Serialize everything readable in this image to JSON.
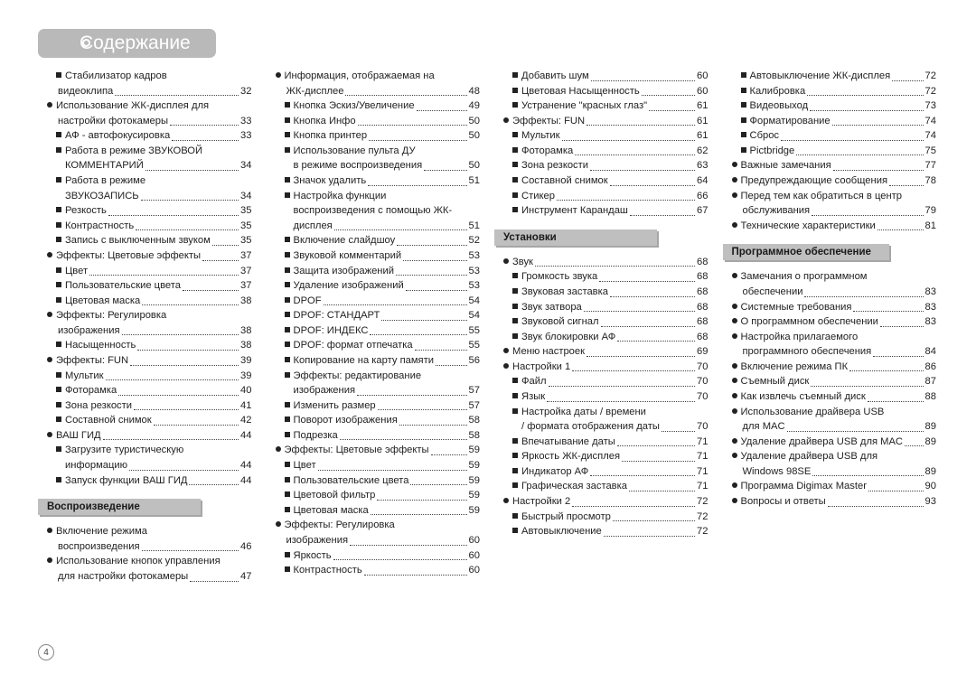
{
  "page_number": "4",
  "title": "Содержание",
  "colors": {
    "title_bar_bg": "#b9b9b9",
    "title_text": "#ffffff",
    "section_bar_bg": "#bfbfbf",
    "section_shadow": "rgba(0,0,0,0.35)",
    "body_text": "#222222",
    "page_bg": "#ffffff"
  },
  "typography": {
    "title_fontsize_pt": 16,
    "body_fontsize_pt": 8.5,
    "section_fontsize_pt": 9,
    "font_family": "Arial"
  },
  "sections": {
    "playback": "Воспроизведение",
    "settings": "Установки",
    "software": "Программное обеспечение"
  },
  "col1": [
    {
      "marker": "sq",
      "indent": 1,
      "text": "Стабилизатор кадров",
      "cont": true
    },
    {
      "marker": "",
      "indent": "hang1",
      "text": "видеоклипа",
      "page": "32"
    },
    {
      "marker": "bullet",
      "indent": 0,
      "text": "Использование ЖК-дисплея для",
      "cont": true
    },
    {
      "marker": "",
      "indent": "hang1",
      "text": "настройки фотокамеры",
      "page": "33"
    },
    {
      "marker": "sq",
      "indent": 1,
      "text": "АФ - автофокусировка",
      "page": "33"
    },
    {
      "marker": "sq",
      "indent": 1,
      "text": "Работа в режиме ЗВУКОВОЙ",
      "cont": true
    },
    {
      "marker": "",
      "indent": "hang2",
      "text": "КОММЕНТАРИЙ",
      "page": "34"
    },
    {
      "marker": "sq",
      "indent": 1,
      "text": "Работа в режиме",
      "cont": true
    },
    {
      "marker": "",
      "indent": "hang2",
      "text": "ЗВУКОЗАПИСЬ",
      "page": "34"
    },
    {
      "marker": "sq",
      "indent": 1,
      "text": "Резкость",
      "page": "35"
    },
    {
      "marker": "sq",
      "indent": 1,
      "text": "Контрастность",
      "page": "35"
    },
    {
      "marker": "sq",
      "indent": 1,
      "text": "Запись с выключенным звуком",
      "page": "35"
    },
    {
      "marker": "bullet",
      "indent": 0,
      "text": "Эффекты: Цветовые эффекты",
      "page": "37"
    },
    {
      "marker": "sq",
      "indent": 1,
      "text": "Цвет",
      "page": "37"
    },
    {
      "marker": "sq",
      "indent": 1,
      "text": "Пользовательские цвета",
      "page": "37"
    },
    {
      "marker": "sq",
      "indent": 1,
      "text": "Цветовая маска",
      "page": "38"
    },
    {
      "marker": "bullet",
      "indent": 0,
      "text": "Эффекты: Регулировка",
      "cont": true
    },
    {
      "marker": "",
      "indent": "hang1",
      "text": "изображения",
      "page": "38"
    },
    {
      "marker": "sq",
      "indent": 1,
      "text": "Насыщенность",
      "page": "38"
    },
    {
      "marker": "bullet",
      "indent": 0,
      "text": "Эффекты: FUN",
      "page": "39"
    },
    {
      "marker": "sq",
      "indent": 1,
      "text": "Мультик",
      "page": "39"
    },
    {
      "marker": "sq",
      "indent": 1,
      "text": "Фоторамка",
      "page": "40"
    },
    {
      "marker": "sq",
      "indent": 1,
      "text": "Зона резкости",
      "page": "41"
    },
    {
      "marker": "sq",
      "indent": 1,
      "text": "Составной снимок",
      "page": "42"
    },
    {
      "marker": "bullet",
      "indent": 0,
      "text": "ВАШ ГИД",
      "page": "44"
    },
    {
      "marker": "sq",
      "indent": 1,
      "text": "Загрузите туристическую",
      "cont": true
    },
    {
      "marker": "",
      "indent": "hang2",
      "text": "информацию",
      "page": "44"
    },
    {
      "marker": "sq",
      "indent": 1,
      "text": "Запуск функции ВАШ  ГИД",
      "page": "44"
    }
  ],
  "col1_playback": [
    {
      "marker": "bullet",
      "indent": 0,
      "text": "Включение режима",
      "cont": true
    },
    {
      "marker": "",
      "indent": "hang1",
      "text": "воспроизведения",
      "page": "46"
    },
    {
      "marker": "bullet",
      "indent": 0,
      "text": "Использование кнопок управления",
      "cont": true
    },
    {
      "marker": "",
      "indent": "hang1",
      "text": "для настройки фотокамеры",
      "page": "47"
    }
  ],
  "col2": [
    {
      "marker": "bullet",
      "indent": 0,
      "text": "Информация, отображаемая на",
      "cont": true
    },
    {
      "marker": "",
      "indent": "hang1",
      "text": "ЖК-дисплее",
      "page": "48"
    },
    {
      "marker": "sq",
      "indent": 1,
      "text": "Кнопка Эскиз/Увеличение",
      "page": "49"
    },
    {
      "marker": "sq",
      "indent": 1,
      "text": "Кнопка Инфо",
      "page": "50"
    },
    {
      "marker": "sq",
      "indent": 1,
      "text": "Кнопка принтер",
      "page": "50"
    },
    {
      "marker": "sq",
      "indent": 1,
      "text": "Использование пульта ДУ",
      "cont": true
    },
    {
      "marker": "",
      "indent": "hang2",
      "text": "в режиме воспроизведения",
      "page": "50"
    },
    {
      "marker": "sq",
      "indent": 1,
      "text": "Значок удалить",
      "page": "51"
    },
    {
      "marker": "sq",
      "indent": 1,
      "text": "Настройка функции",
      "cont": true
    },
    {
      "marker": "",
      "indent": "hang2",
      "text": "воспроизведения с помощью ЖК-",
      "cont": true
    },
    {
      "marker": "",
      "indent": "hang2",
      "text": "дисплея",
      "page": "51"
    },
    {
      "marker": "sq",
      "indent": 1,
      "text": "Включение слайдшоу",
      "page": "52"
    },
    {
      "marker": "sq",
      "indent": 1,
      "text": "Звуковой комментарий",
      "page": "53"
    },
    {
      "marker": "sq",
      "indent": 1,
      "text": "Защита изображений",
      "page": "53"
    },
    {
      "marker": "sq",
      "indent": 1,
      "text": "Удаление изображений",
      "page": "53"
    },
    {
      "marker": "sq",
      "indent": 1,
      "text": "DPOF",
      "page": "54"
    },
    {
      "marker": "sq",
      "indent": 1,
      "text": "DPOF: СТАНДАРТ",
      "page": "54"
    },
    {
      "marker": "sq",
      "indent": 1,
      "text": "DPOF: ИНДЕКС",
      "page": "55"
    },
    {
      "marker": "sq",
      "indent": 1,
      "text": "DPOF: формат отпечатка",
      "page": "55"
    },
    {
      "marker": "sq",
      "indent": 1,
      "text": "Копирование на карту памяти",
      "page": "56"
    },
    {
      "marker": "sq",
      "indent": 1,
      "text": "Эффекты: редактирование",
      "cont": true
    },
    {
      "marker": "",
      "indent": "hang2",
      "text": "изображения",
      "page": "57"
    },
    {
      "marker": "sq",
      "indent": 1,
      "text": "Изменить размер",
      "page": "57"
    },
    {
      "marker": "sq",
      "indent": 1,
      "text": "Поворот изображения",
      "page": "58"
    },
    {
      "marker": "sq",
      "indent": 1,
      "text": "Подрезка",
      "page": "58"
    },
    {
      "marker": "bullet",
      "indent": 0,
      "text": "Эффекты: Цветовые эффекты",
      "page": "59"
    },
    {
      "marker": "sq",
      "indent": 1,
      "text": "Цвет",
      "page": "59"
    },
    {
      "marker": "sq",
      "indent": 1,
      "text": "Пользовательские цвета",
      "page": "59"
    },
    {
      "marker": "sq",
      "indent": 1,
      "text": "Цветовой фильтр",
      "page": "59"
    },
    {
      "marker": "sq",
      "indent": 1,
      "text": "Цветовая маска",
      "page": "59"
    },
    {
      "marker": "bullet",
      "indent": 0,
      "text": "Эффекты: Регулировка",
      "cont": true
    },
    {
      "marker": "",
      "indent": "hang1",
      "text": "изображения",
      "page": "60"
    },
    {
      "marker": "sq",
      "indent": 1,
      "text": "Яркость",
      "page": "60"
    },
    {
      "marker": "sq",
      "indent": 1,
      "text": "Контрастность",
      "page": "60"
    }
  ],
  "col3_top": [
    {
      "marker": "sq",
      "indent": 1,
      "text": "Добавить шум",
      "page": "60"
    },
    {
      "marker": "sq",
      "indent": 1,
      "text": "Цветовая Насыщенность",
      "page": "60"
    },
    {
      "marker": "sq",
      "indent": 1,
      "text": "Устранение \"красных глаз\"",
      "page": "61"
    },
    {
      "marker": "bullet",
      "indent": 0,
      "text": "Эффекты: FUN",
      "page": "61"
    },
    {
      "marker": "sq",
      "indent": 1,
      "text": "Мультик",
      "page": "61"
    },
    {
      "marker": "sq",
      "indent": 1,
      "text": "Фоторамка",
      "page": "62"
    },
    {
      "marker": "sq",
      "indent": 1,
      "text": "Зона резкости",
      "page": "63"
    },
    {
      "marker": "sq",
      "indent": 1,
      "text": "Составной снимок",
      "page": "64"
    },
    {
      "marker": "sq",
      "indent": 1,
      "text": "Стикер",
      "page": "66"
    },
    {
      "marker": "sq",
      "indent": 1,
      "text": "Инструмент Карандаш",
      "page": "67"
    }
  ],
  "col3_settings": [
    {
      "marker": "bullet",
      "indent": 0,
      "text": "Звук",
      "page": "68"
    },
    {
      "marker": "sq",
      "indent": 1,
      "text": "Громкость звука",
      "page": "68"
    },
    {
      "marker": "sq",
      "indent": 1,
      "text": "Звуковая заставка",
      "page": "68"
    },
    {
      "marker": "sq",
      "indent": 1,
      "text": "Звук затвора",
      "page": "68"
    },
    {
      "marker": "sq",
      "indent": 1,
      "text": "Звуковой сигнал",
      "page": "68"
    },
    {
      "marker": "sq",
      "indent": 1,
      "text": "Звук блокировки АФ",
      "page": "68"
    },
    {
      "marker": "bullet",
      "indent": 0,
      "text": "Меню настроек",
      "page": "69"
    },
    {
      "marker": "bullet",
      "indent": 0,
      "text": "Настройки 1",
      "page": "70"
    },
    {
      "marker": "sq",
      "indent": 1,
      "text": "Файл",
      "page": "70"
    },
    {
      "marker": "sq",
      "indent": 1,
      "text": "Язык",
      "page": "70"
    },
    {
      "marker": "sq",
      "indent": 1,
      "text": "Настройка даты / времени",
      "cont": true
    },
    {
      "marker": "",
      "indent": "hang2",
      "text": "/ формата отображения даты",
      "page": "70"
    },
    {
      "marker": "sq",
      "indent": 1,
      "text": "Впечатывание даты",
      "page": "71"
    },
    {
      "marker": "sq",
      "indent": 1,
      "text": "Яркость ЖК-дисплея",
      "page": "71"
    },
    {
      "marker": "sq",
      "indent": 1,
      "text": "Индикатор АФ",
      "page": "71"
    },
    {
      "marker": "sq",
      "indent": 1,
      "text": "Графическая заставка",
      "page": "71"
    },
    {
      "marker": "bullet",
      "indent": 0,
      "text": "Настройки 2",
      "page": "72"
    },
    {
      "marker": "sq",
      "indent": 1,
      "text": "Быстрый просмотр",
      "page": "72"
    },
    {
      "marker": "sq",
      "indent": 1,
      "text": "Автовыключение",
      "page": "72"
    }
  ],
  "col4_top": [
    {
      "marker": "sq",
      "indent": 1,
      "text": "Автовыключение ЖК-дисплея",
      "page": "72"
    },
    {
      "marker": "sq",
      "indent": 1,
      "text": "Калибровка",
      "page": "72"
    },
    {
      "marker": "sq",
      "indent": 1,
      "text": "Видеовыход",
      "page": "73"
    },
    {
      "marker": "sq",
      "indent": 1,
      "text": "Форматирование",
      "page": "74"
    },
    {
      "marker": "sq",
      "indent": 1,
      "text": "Сброс",
      "page": "74"
    },
    {
      "marker": "sq",
      "indent": 1,
      "text": "Pictbridge",
      "page": "75"
    },
    {
      "marker": "bullet",
      "indent": 0,
      "text": "Важные замечания",
      "page": "77"
    },
    {
      "marker": "bullet",
      "indent": 0,
      "text": "Предупреждающие сообщения",
      "page": "78"
    },
    {
      "marker": "bullet",
      "indent": 0,
      "text": "Перед тем как обратиться в центр",
      "cont": true
    },
    {
      "marker": "",
      "indent": "hang1",
      "text": "обслуживания",
      "page": "79"
    },
    {
      "marker": "bullet",
      "indent": 0,
      "text": "Технические характеристики",
      "page": "81"
    }
  ],
  "col4_software": [
    {
      "marker": "bullet",
      "indent": 0,
      "text": "Замечания о программном",
      "cont": true
    },
    {
      "marker": "",
      "indent": "hang1",
      "text": "обеспечении",
      "page": "83"
    },
    {
      "marker": "bullet",
      "indent": 0,
      "text": "Системные требования",
      "page": "83"
    },
    {
      "marker": "bullet",
      "indent": 0,
      "text": "О программном обеспечении",
      "page": "83"
    },
    {
      "marker": "bullet",
      "indent": 0,
      "text": "Настройка прилагаемого",
      "cont": true
    },
    {
      "marker": "",
      "indent": "hang1",
      "text": "программного обеспечения",
      "page": "84"
    },
    {
      "marker": "bullet",
      "indent": 0,
      "text": "Включение режима ПК",
      "page": "86"
    },
    {
      "marker": "bullet",
      "indent": 0,
      "text": "Съемный диск",
      "page": "87"
    },
    {
      "marker": "bullet",
      "indent": 0,
      "text": "Как извлечь съемный диск",
      "page": "88"
    },
    {
      "marker": "bullet",
      "indent": 0,
      "text": "Использование драйвера USB",
      "cont": true
    },
    {
      "marker": "",
      "indent": "hang1",
      "text": "для MAC",
      "page": "89"
    },
    {
      "marker": "bullet",
      "indent": 0,
      "text": "Удаление драйвера USB для MAC",
      "page": "89"
    },
    {
      "marker": "bullet",
      "indent": 0,
      "text": "Удаление драйвера USB для",
      "cont": true
    },
    {
      "marker": "",
      "indent": "hang1",
      "text": "Windows 98SE",
      "page": "89"
    },
    {
      "marker": "bullet",
      "indent": 0,
      "text": "Программа Digimax Master",
      "page": "90"
    },
    {
      "marker": "bullet",
      "indent": 0,
      "text": "Вопросы и ответы",
      "page": "93"
    }
  ]
}
